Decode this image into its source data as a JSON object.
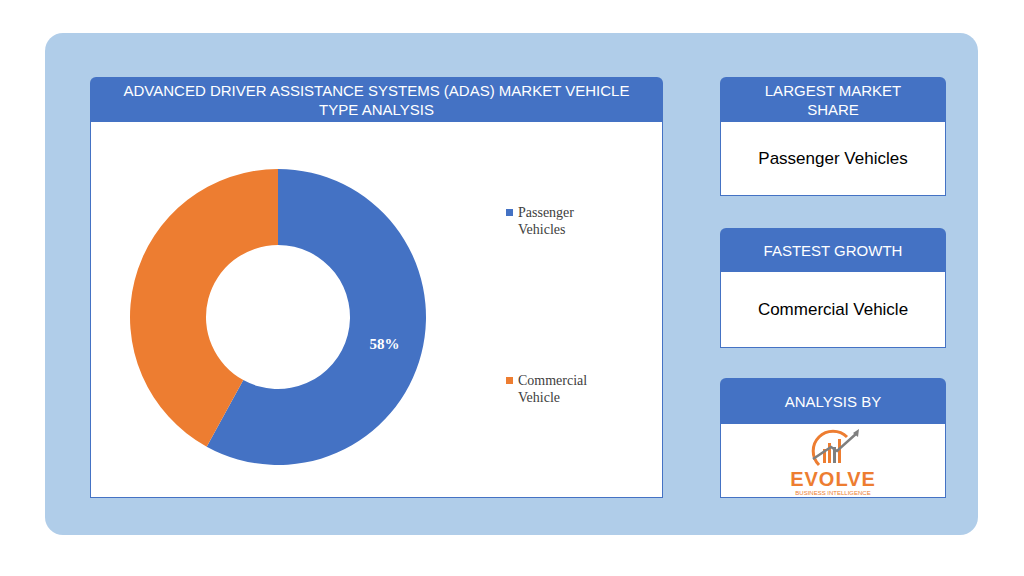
{
  "chart_data": {
    "type": "pie",
    "title": "ADVANCED DRIVER ASSISTANCE SYSTEMS (ADAS) MARKET VEHICLE TYPE ANALYSIS",
    "categories": [
      "Passenger Vehicles",
      "Commercial Vehicle"
    ],
    "values": [
      58,
      42
    ],
    "colors": [
      "#4472c4",
      "#ed7d31"
    ],
    "value_labels": [
      "58%",
      null
    ],
    "legend": "right"
  },
  "panels": [
    {
      "title": "LARGEST MARKET SHARE",
      "text": "Passenger Vehicles"
    },
    {
      "title": "FASTEST GROWTH",
      "text": "Commercial Vehicle"
    },
    {
      "title": "ANALYSIS BY",
      "logo": {
        "name": "EVOLVE",
        "tagline": "BUSINESS INTELLIGENCE"
      }
    }
  ]
}
